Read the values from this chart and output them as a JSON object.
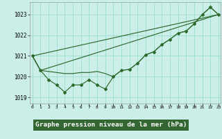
{
  "background_color": "#cceee8",
  "grid_color": "#99ddcc",
  "line_color": "#2d6b2d",
  "xlabel": "Graphe pression niveau de la mer (hPa)",
  "ylim": [
    1018.7,
    1023.6
  ],
  "xlim": [
    -0.3,
    23.3
  ],
  "yticks": [
    1019,
    1020,
    1021,
    1022,
    1023
  ],
  "xtick_labels": [
    "0",
    "1",
    "2",
    "3",
    "4",
    "5",
    "6",
    "7",
    "8",
    "9",
    "10",
    "11",
    "12",
    "13",
    "14",
    "15",
    "16",
    "17",
    "18",
    "19",
    "20",
    "21",
    "22",
    "23"
  ],
  "main_x": [
    0,
    1,
    2,
    3,
    4,
    5,
    6,
    7,
    8,
    9,
    10,
    11,
    12,
    13,
    14,
    15,
    16,
    17,
    18,
    19,
    20,
    21,
    22,
    23
  ],
  "main_y": [
    1021.0,
    1020.3,
    1019.85,
    1019.6,
    1019.25,
    1019.6,
    1019.6,
    1019.85,
    1019.6,
    1019.4,
    1020.0,
    1020.3,
    1020.35,
    1020.65,
    1021.05,
    1021.2,
    1021.55,
    1021.8,
    1022.1,
    1022.2,
    1022.55,
    1023.0,
    1023.35,
    1023.0
  ],
  "line2_x": [
    0,
    1,
    4,
    5,
    6,
    7,
    8,
    9,
    10,
    11,
    12,
    13,
    14,
    15,
    16,
    17,
    18,
    19,
    20,
    21,
    22,
    23
  ],
  "line2_y": [
    1021.0,
    1020.3,
    1020.15,
    1020.15,
    1020.2,
    1020.2,
    1020.25,
    1020.15,
    1020.0,
    1020.3,
    1020.35,
    1020.65,
    1021.05,
    1021.2,
    1021.55,
    1021.8,
    1022.1,
    1022.2,
    1022.55,
    1023.0,
    1023.35,
    1023.0
  ],
  "line3_x": [
    0,
    1,
    23
  ],
  "line3_y": [
    1021.0,
    1020.3,
    1023.0
  ],
  "line4_x": [
    0,
    23
  ],
  "line4_y": [
    1021.0,
    1023.0
  ],
  "label_bg": "#336633",
  "label_fg": "#ffffff",
  "label_fontsize": 6.8
}
